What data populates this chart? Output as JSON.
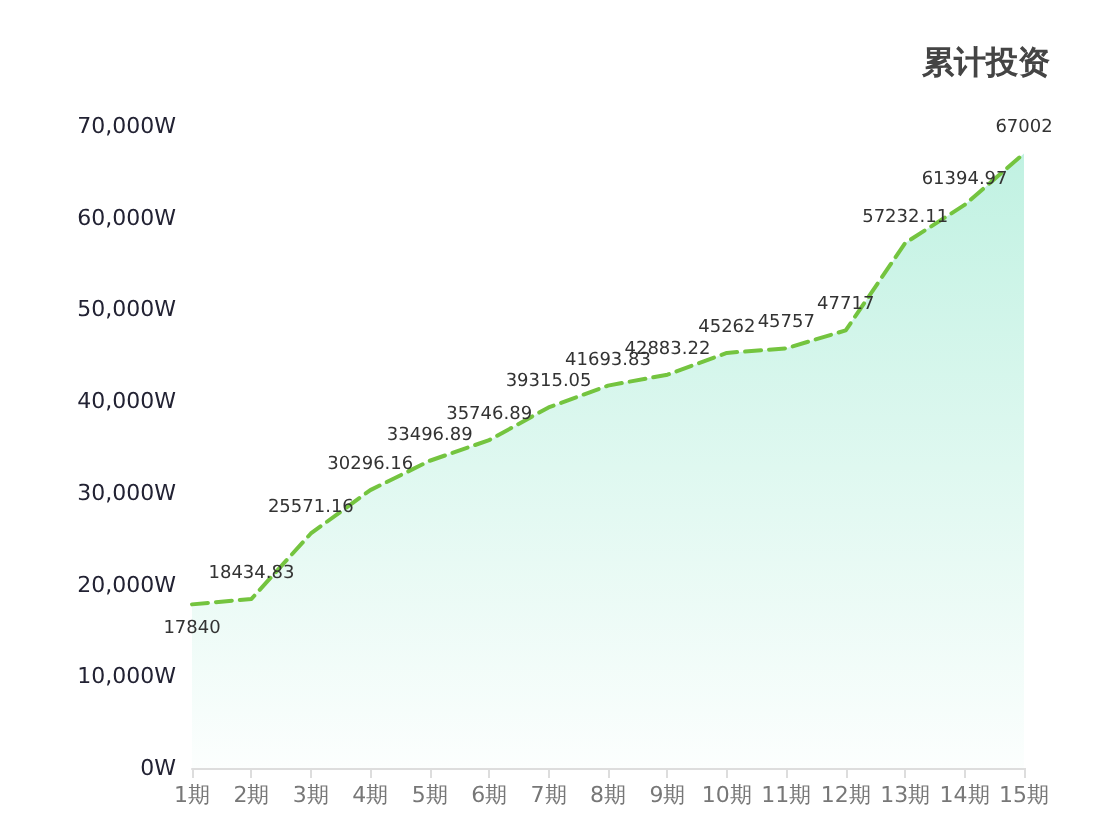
{
  "chart_data": {
    "type": "area",
    "title": "累计投资",
    "categories": [
      "1期",
      "2期",
      "3期",
      "4期",
      "5期",
      "6期",
      "7期",
      "8期",
      "9期",
      "10期",
      "11期",
      "12期",
      "13期",
      "14期",
      "15期"
    ],
    "series": [
      {
        "color": "#74c43f",
        "values": [
          17840,
          18434.83,
          25571.16,
          30296.16,
          33496.89,
          35746.89,
          39315.05,
          41693.83,
          42883.22,
          45262,
          45757,
          47717,
          57232.11,
          61394.97,
          67002
        ]
      }
    ],
    "ylim": [
      0,
      70000
    ],
    "yticks": [
      {
        "value": 0,
        "label": "0W"
      },
      {
        "value": 10000,
        "label": "10,000W"
      },
      {
        "value": 20000,
        "label": "20,000W"
      },
      {
        "value": 30000,
        "label": "30,000W"
      },
      {
        "value": 40000,
        "label": "40,000W"
      },
      {
        "value": 50000,
        "label": "50,000W"
      },
      {
        "value": 60000,
        "label": "60,000W"
      },
      {
        "value": 70000,
        "label": "70,000W"
      }
    ],
    "grid": false,
    "marker": "none",
    "line_style": "dashed",
    "data_labels": true
  }
}
